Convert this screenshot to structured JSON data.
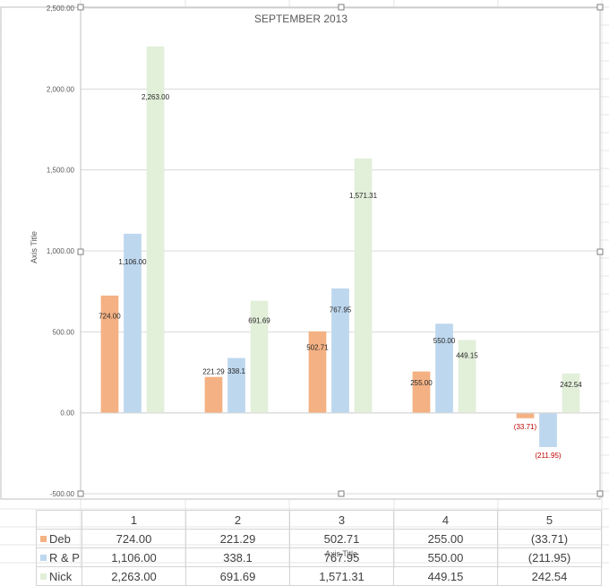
{
  "chart_data": {
    "type": "bar",
    "title": "SEPTEMBER 2013",
    "xlabel": "Axis Title",
    "ylabel": "Axis Title",
    "ylim": [
      -500,
      2500
    ],
    "yticks": [
      -500,
      0,
      500,
      1000,
      1500,
      2000,
      2500
    ],
    "ytick_labels": [
      "-500.00",
      "0.00",
      "500.00",
      "1,000.00",
      "1,500.00",
      "2,000.00",
      "2,500.00"
    ],
    "categories": [
      "1",
      "2",
      "3",
      "4",
      "5"
    ],
    "grid": true,
    "legend": "data table",
    "series": [
      {
        "name": "Deb",
        "color": "#f4b183",
        "values": [
          724.0,
          221.29,
          502.71,
          255.0,
          -33.71
        ],
        "labels": [
          "724.00",
          "221.29",
          "502.71",
          "255.00",
          "(33.71)"
        ]
      },
      {
        "name": "R & P",
        "color": "#bdd7ee",
        "values": [
          1106.0,
          338.1,
          767.95,
          550.0,
          -211.95
        ],
        "labels": [
          "1,106.00",
          "338.1",
          "767.95",
          "550.00",
          "(211.95)"
        ]
      },
      {
        "name": "Nick",
        "color": "#e2efd9",
        "values": [
          2263.0,
          691.69,
          1571.31,
          449.15,
          242.54
        ],
        "labels": [
          "2,263.00",
          "691.69",
          "1,571.31",
          "449.15",
          "242.54"
        ]
      }
    ],
    "negative_label_color": "#c00000"
  }
}
